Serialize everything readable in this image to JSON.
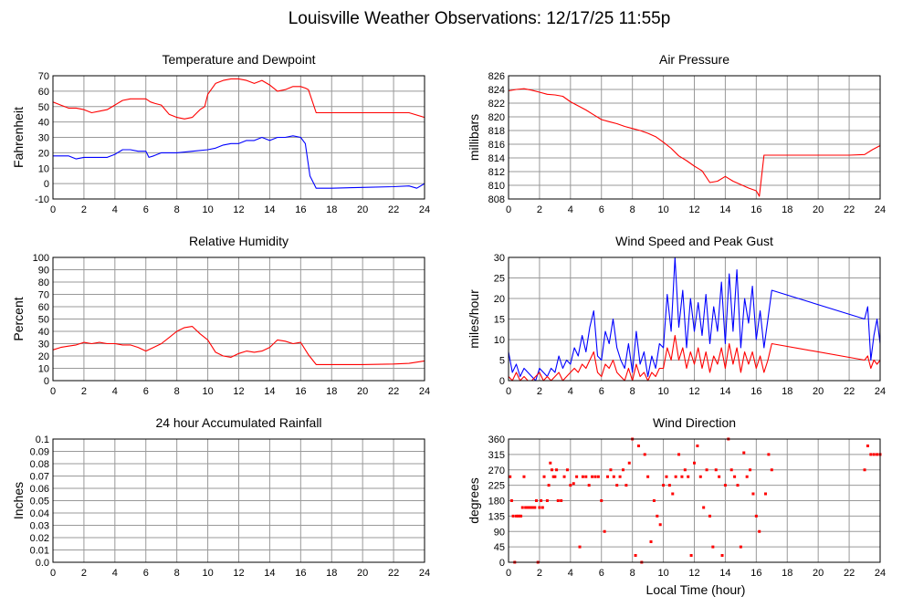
{
  "title": "Louisville Weather Observations: 12/17/25 11:55p",
  "x_axis_title": "Local Time (hour)",
  "x_ticks": [
    0,
    2,
    4,
    6,
    8,
    10,
    12,
    14,
    16,
    18,
    20,
    22,
    24
  ],
  "colors": {
    "red": "#ff0000",
    "blue": "#0000ff",
    "grid": "#999999"
  },
  "chart_data": [
    {
      "type": "line",
      "title": "Temperature and Dewpoint",
      "ylabel": "Fahrenheit",
      "xlim": [
        0,
        24
      ],
      "ylim": [
        -10,
        70
      ],
      "y_ticks": [
        -10,
        0,
        10,
        20,
        30,
        40,
        50,
        60,
        70
      ],
      "series": [
        {
          "color": "#ff0000",
          "x": [
            0,
            0.5,
            1,
            1.5,
            2,
            2.5,
            3,
            3.5,
            4,
            4.5,
            5,
            5.5,
            6,
            6.3,
            6.6,
            7,
            7.5,
            8,
            8.5,
            9,
            9.5,
            9.8,
            10,
            10.5,
            11,
            11.5,
            12,
            12.5,
            13,
            13.5,
            14,
            14.5,
            15,
            15.5,
            16,
            16.3,
            16.5,
            17,
            18,
            20,
            22,
            23,
            24
          ],
          "y": [
            53,
            51,
            49,
            49,
            48,
            46,
            47,
            48,
            51,
            54,
            55,
            55,
            55,
            53,
            52,
            51,
            45,
            43,
            42,
            43,
            48,
            50,
            58,
            65,
            67,
            68,
            68,
            67,
            65,
            67,
            64,
            60,
            61,
            63,
            63,
            62,
            61,
            46,
            46,
            46,
            46,
            46,
            43
          ]
        },
        {
          "color": "#0000ff",
          "x": [
            0,
            0.5,
            1,
            1.5,
            2,
            2.5,
            3,
            3.5,
            4,
            4.5,
            5,
            5.5,
            6,
            6.2,
            6.5,
            7,
            8,
            9,
            10,
            10.5,
            11,
            11.5,
            12,
            12.5,
            13,
            13.5,
            14,
            14.5,
            15,
            15.5,
            16,
            16.3,
            16.6,
            17,
            18,
            20,
            22,
            23,
            23.5,
            24
          ],
          "y": [
            18,
            18,
            18,
            16,
            17,
            17,
            17,
            17,
            19,
            22,
            22,
            21,
            21,
            17,
            18,
            20,
            20,
            21,
            22,
            23,
            25,
            26,
            26,
            28,
            28,
            30,
            28,
            30,
            30,
            31,
            30,
            26,
            5,
            -3,
            -3,
            -2.5,
            -2,
            -1.5,
            -3,
            0
          ]
        }
      ]
    },
    {
      "type": "line",
      "title": "Air Pressure",
      "ylabel": "millibars",
      "xlim": [
        0,
        24
      ],
      "ylim": [
        808,
        826
      ],
      "y_ticks": [
        808,
        810,
        812,
        814,
        816,
        818,
        820,
        822,
        824,
        826
      ],
      "series": [
        {
          "color": "#ff0000",
          "x": [
            0,
            0.5,
            1,
            1.5,
            2,
            2.5,
            3,
            3.5,
            4,
            4.5,
            5,
            5.5,
            6,
            6.5,
            7,
            7.5,
            8,
            8.5,
            9,
            9.5,
            10,
            10.5,
            11,
            11.5,
            12,
            12.5,
            13,
            13.5,
            14,
            14.5,
            15,
            15.5,
            16,
            16.2,
            16.5,
            17,
            18,
            20,
            22,
            23,
            23.5,
            24
          ],
          "y": [
            823.8,
            824,
            824.1,
            823.9,
            823.6,
            823.3,
            823.2,
            823,
            822.2,
            821.6,
            821,
            820.3,
            819.6,
            819.3,
            819,
            818.6,
            818.3,
            818,
            817.6,
            817.1,
            816.3,
            815.4,
            814.3,
            813.6,
            812.8,
            812.1,
            810.4,
            810.6,
            811.3,
            810.6,
            810.1,
            809.6,
            809.2,
            808.4,
            814.4,
            814.4,
            814.4,
            814.4,
            814.4,
            814.5,
            815.2,
            815.8
          ]
        }
      ]
    },
    {
      "type": "line",
      "title": "Relative Humidity",
      "ylabel": "Percent",
      "xlim": [
        0,
        24
      ],
      "ylim": [
        0,
        100
      ],
      "y_ticks": [
        0,
        10,
        20,
        30,
        40,
        50,
        60,
        70,
        80,
        90,
        100
      ],
      "series": [
        {
          "color": "#ff0000",
          "x": [
            0,
            0.5,
            1,
            1.5,
            2,
            2.5,
            3,
            3.5,
            4,
            4.5,
            5,
            5.5,
            6,
            6.5,
            7,
            7.5,
            8,
            8.5,
            9,
            9.5,
            10,
            10.5,
            11,
            11.5,
            12,
            12.5,
            13,
            13.5,
            14,
            14.5,
            15,
            15.5,
            16,
            16.5,
            17,
            18,
            20,
            22,
            23,
            24
          ],
          "y": [
            25,
            27,
            28,
            29,
            31,
            30,
            31,
            30,
            30,
            29,
            29,
            27,
            24,
            27,
            30,
            35,
            40,
            43,
            44,
            38,
            33,
            23,
            20,
            19,
            22,
            24,
            23,
            24,
            27,
            33,
            32,
            30,
            31,
            21,
            13,
            13,
            13,
            13.5,
            14,
            16
          ]
        }
      ]
    },
    {
      "type": "line",
      "title": "Wind Speed and Peak Gust",
      "ylabel": "miles/hour",
      "xlim": [
        0,
        24
      ],
      "ylim": [
        0,
        30
      ],
      "y_ticks": [
        0,
        5,
        10,
        15,
        20,
        25,
        30
      ],
      "series": [
        {
          "color": "#0000ff",
          "x": [
            0,
            0.25,
            0.5,
            0.75,
            1,
            1.25,
            1.5,
            1.75,
            2,
            2.25,
            2.5,
            2.75,
            3,
            3.25,
            3.5,
            3.75,
            4,
            4.25,
            4.5,
            4.75,
            5,
            5.25,
            5.5,
            5.75,
            6,
            6.25,
            6.5,
            6.75,
            7,
            7.25,
            7.5,
            7.75,
            8,
            8.25,
            8.5,
            8.75,
            9,
            9.25,
            9.5,
            9.75,
            10,
            10.25,
            10.5,
            10.75,
            11,
            11.25,
            11.5,
            11.75,
            12,
            12.25,
            12.5,
            12.75,
            13,
            13.25,
            13.5,
            13.75,
            14,
            14.25,
            14.5,
            14.75,
            15,
            15.25,
            15.5,
            15.75,
            16,
            16.25,
            16.5,
            16.75,
            17,
            23,
            23.2,
            23.4,
            23.6,
            23.8,
            24
          ],
          "y": [
            7,
            2,
            4,
            1,
            3,
            2,
            1,
            0,
            3,
            2,
            1,
            3,
            2,
            6,
            3,
            5,
            4,
            8,
            6,
            11,
            7,
            13,
            17,
            6,
            5,
            12,
            9,
            15,
            8,
            5,
            3,
            9,
            2,
            12,
            4,
            7,
            1,
            6,
            3,
            9,
            8,
            21,
            12,
            30,
            13,
            22,
            8,
            20,
            12,
            19,
            11,
            21,
            9,
            18,
            12,
            24,
            9,
            26,
            12,
            27,
            8,
            20,
            14,
            23,
            10,
            17,
            8,
            15,
            22,
            15,
            18,
            5,
            11,
            15,
            9
          ]
        },
        {
          "color": "#ff0000",
          "x": [
            0,
            0.25,
            0.5,
            0.75,
            1,
            1.25,
            1.5,
            1.75,
            2,
            2.25,
            2.5,
            2.75,
            3,
            3.25,
            3.5,
            3.75,
            4,
            4.25,
            4.5,
            4.75,
            5,
            5.25,
            5.5,
            5.75,
            6,
            6.25,
            6.5,
            6.75,
            7,
            7.25,
            7.5,
            7.75,
            8,
            8.25,
            8.5,
            8.75,
            9,
            9.25,
            9.5,
            9.75,
            10,
            10.25,
            10.5,
            10.75,
            11,
            11.25,
            11.5,
            11.75,
            12,
            12.25,
            12.5,
            12.75,
            13,
            13.25,
            13.5,
            13.75,
            14,
            14.25,
            14.5,
            14.75,
            15,
            15.25,
            15.5,
            15.75,
            16,
            16.25,
            16.5,
            16.75,
            17,
            23,
            23.2,
            23.4,
            23.6,
            23.8,
            24
          ],
          "y": [
            1,
            0,
            2,
            0,
            1,
            0,
            0,
            1,
            2,
            0,
            1,
            0,
            1,
            2,
            0,
            1,
            2,
            3,
            2,
            4,
            3,
            5,
            7,
            2,
            1,
            4,
            3,
            5,
            2,
            1,
            0,
            3,
            0,
            4,
            1,
            2,
            0,
            2,
            1,
            3,
            3,
            8,
            5,
            11,
            5,
            8,
            3,
            7,
            4,
            8,
            3,
            7,
            2,
            6,
            4,
            8,
            3,
            9,
            4,
            8,
            2,
            7,
            4,
            7,
            3,
            6,
            2,
            5,
            9,
            5,
            6,
            3,
            5,
            4,
            5
          ]
        }
      ]
    },
    {
      "type": "line",
      "title": "24 hour Accumulated Rainfall",
      "ylabel": "Inches",
      "xlim": [
        0,
        24
      ],
      "ylim": [
        0,
        0.1
      ],
      "y_ticks": [
        0.0,
        0.01,
        0.02,
        0.03,
        0.04,
        0.05,
        0.06,
        0.07,
        0.08,
        0.09,
        0.1
      ],
      "y_tick_labels": [
        "0.0",
        "0.01",
        "0.02",
        "0.03",
        "0.04",
        "0.05",
        "0.06",
        "0.07",
        "0.08",
        "0.09",
        "0.1"
      ],
      "series": [
        {
          "color": "#ff0000",
          "x": [
            0,
            24
          ],
          "y": [
            0,
            0
          ]
        }
      ]
    },
    {
      "type": "scatter",
      "title": "Wind Direction",
      "ylabel": "degrees",
      "xlim": [
        0,
        24
      ],
      "ylim": [
        0,
        360
      ],
      "y_ticks": [
        0,
        45,
        90,
        135,
        180,
        225,
        270,
        315,
        360
      ],
      "series": [
        {
          "color": "#ff0000",
          "x": [
            0.1,
            0.2,
            0.3,
            0.4,
            0.5,
            0.6,
            0.7,
            0.8,
            0.9,
            1.0,
            1.1,
            1.2,
            1.3,
            1.4,
            1.5,
            1.6,
            1.7,
            1.8,
            1.9,
            2.0,
            2.1,
            2.2,
            2.3,
            2.5,
            2.6,
            2.7,
            2.8,
            2.9,
            3.0,
            3.1,
            3.2,
            3.4,
            3.6,
            3.8,
            4.0,
            4.2,
            4.4,
            4.6,
            4.8,
            5.0,
            5.2,
            5.4,
            5.6,
            5.8,
            6.0,
            6.2,
            6.4,
            6.6,
            6.8,
            7.0,
            7.2,
            7.4,
            7.6,
            7.8,
            8.0,
            8.2,
            8.4,
            8.6,
            8.8,
            9.0,
            9.2,
            9.4,
            9.6,
            9.8,
            10.0,
            10.2,
            10.4,
            10.6,
            10.8,
            11.0,
            11.2,
            11.4,
            11.6,
            11.8,
            12.0,
            12.2,
            12.4,
            12.6,
            12.8,
            13.0,
            13.2,
            13.4,
            13.6,
            13.8,
            14.0,
            14.2,
            14.4,
            14.6,
            14.8,
            15.0,
            15.2,
            15.4,
            15.6,
            15.8,
            16.0,
            16.2,
            16.6,
            16.8,
            17.0,
            23.0,
            23.2,
            23.4,
            23.6,
            23.8,
            24.0
          ],
          "y": [
            250,
            180,
            135,
            0,
            135,
            135,
            135,
            135,
            160,
            250,
            160,
            160,
            160,
            160,
            160,
            160,
            160,
            180,
            0,
            160,
            180,
            160,
            250,
            180,
            225,
            290,
            270,
            250,
            250,
            270,
            180,
            180,
            250,
            270,
            225,
            230,
            250,
            45,
            250,
            250,
            225,
            250,
            250,
            250,
            180,
            90,
            250,
            270,
            250,
            225,
            250,
            270,
            225,
            290,
            360,
            20,
            340,
            0,
            315,
            250,
            60,
            180,
            135,
            110,
            225,
            250,
            225,
            200,
            250,
            315,
            250,
            270,
            250,
            20,
            290,
            340,
            250,
            160,
            270,
            135,
            45,
            270,
            250,
            20,
            225,
            360,
            270,
            250,
            225,
            45,
            320,
            250,
            270,
            200,
            135,
            90,
            200,
            315,
            270,
            270,
            340,
            315,
            315,
            315,
            315
          ]
        }
      ]
    }
  ]
}
